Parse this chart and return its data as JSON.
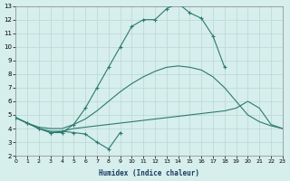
{
  "xlabel": "Humidex (Indice chaleur)",
  "color": "#2d7a6e",
  "bg_color": "#d6eeec",
  "grid_color": "#b8d8d5",
  "ylim": [
    2,
    13
  ],
  "xlim": [
    0,
    23
  ],
  "line_main_x": [
    0,
    1,
    2,
    3,
    4,
    5,
    6,
    7,
    8,
    9,
    10,
    11,
    12,
    13,
    14,
    15,
    16,
    17,
    18
  ],
  "line_main_y": [
    4.8,
    4.4,
    4.0,
    3.7,
    3.7,
    4.3,
    5.5,
    7.0,
    8.5,
    10.0,
    11.5,
    12.0,
    12.0,
    12.8,
    13.2,
    12.5,
    12.1,
    10.8,
    8.5
  ],
  "line2_x": [
    0,
    1,
    2,
    3,
    4,
    5,
    6,
    7,
    8,
    9,
    10,
    11,
    12,
    13,
    14,
    15,
    16,
    17,
    18,
    19,
    20,
    21,
    22,
    23
  ],
  "line2_y": [
    4.8,
    4.4,
    4.1,
    4.0,
    4.0,
    4.3,
    4.7,
    5.3,
    6.0,
    6.7,
    7.3,
    7.8,
    8.2,
    8.5,
    8.6,
    8.5,
    8.3,
    7.8,
    7.0,
    6.0,
    5.0,
    4.5,
    4.2,
    4.0
  ],
  "line3_x": [
    0,
    1,
    2,
    3,
    4,
    5,
    6,
    7,
    8,
    9,
    10,
    11,
    12,
    13,
    14,
    15,
    16,
    17,
    18,
    19,
    20,
    21,
    22,
    23
  ],
  "line3_y": [
    4.8,
    4.4,
    4.0,
    3.8,
    3.8,
    4.0,
    4.1,
    4.2,
    4.3,
    4.4,
    4.5,
    4.6,
    4.7,
    4.8,
    4.9,
    5.0,
    5.1,
    5.2,
    5.3,
    5.5,
    6.0,
    5.5,
    4.3,
    4.0
  ],
  "line4_x": [
    0,
    1,
    2,
    3,
    4,
    5,
    6,
    7,
    8,
    9
  ],
  "line4_y": [
    4.8,
    4.4,
    4.0,
    3.7,
    3.8,
    3.7,
    3.6,
    3.0,
    2.5,
    3.7
  ]
}
